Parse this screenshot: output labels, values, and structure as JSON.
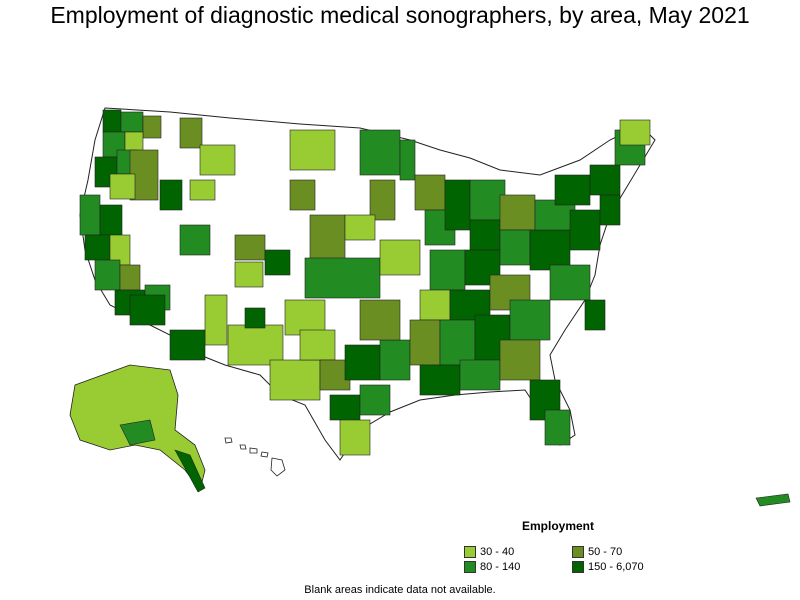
{
  "title": "Employment of diagnostic medical sonographers, by area, May 2021",
  "legend": {
    "title": "Employment",
    "items": [
      {
        "label": "30 - 40",
        "color": "#99cc33"
      },
      {
        "label": "50 - 70",
        "color": "#6b8e23"
      },
      {
        "label": "80 - 140",
        "color": "#228b22"
      },
      {
        "label": "150 - 6,070",
        "color": "#006400"
      }
    ]
  },
  "note": "Blank areas indicate data not available."
}
